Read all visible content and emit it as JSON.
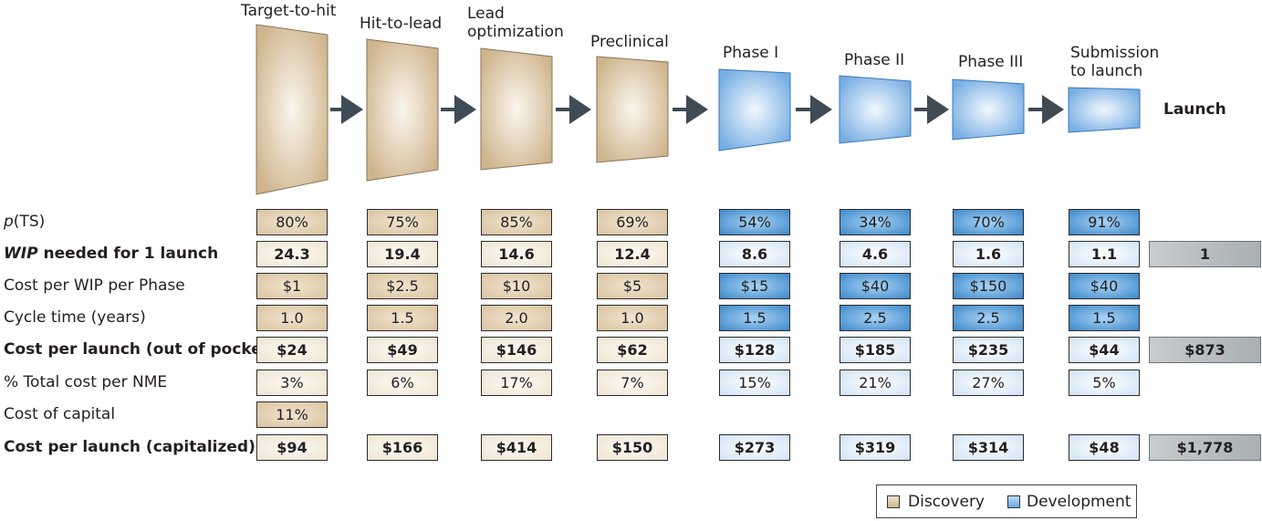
{
  "phases": [
    {
      "label": "Target-to-hit",
      "group": "discovery"
    },
    {
      "label": "Hit-to-lead",
      "group": "discovery"
    },
    {
      "label": "Lead\noptimization",
      "group": "discovery"
    },
    {
      "label": "Preclinical",
      "group": "discovery"
    },
    {
      "label": "Phase I",
      "group": "development"
    },
    {
      "label": "Phase II",
      "group": "development"
    },
    {
      "label": "Phase III",
      "group": "development"
    },
    {
      "label": "Submission\nto launch",
      "group": "development"
    }
  ],
  "launch_label": "Launch",
  "rows": [
    {
      "label_italic": "p",
      "label": "(TS)",
      "bold": false,
      "style": "dark",
      "values": [
        "80%",
        "75%",
        "85%",
        "69%",
        "54%",
        "34%",
        "70%",
        "91%"
      ],
      "launch": null
    },
    {
      "label_italic": "WIP",
      "label": " needed for 1 launch",
      "bold": true,
      "style": "light",
      "values": [
        "24.3",
        "19.4",
        "14.6",
        "12.4",
        "8.6",
        "4.6",
        "1.6",
        "1.1"
      ],
      "launch": "1"
    },
    {
      "label_italic": "",
      "label": "Cost per WIP per Phase",
      "bold": false,
      "style": "dark",
      "values": [
        "$1",
        "$2.5",
        "$10",
        "$5",
        "$15",
        "$40",
        "$150",
        "$40"
      ],
      "launch": null
    },
    {
      "label_italic": "",
      "label": "Cycle time (years)",
      "bold": false,
      "style": "dark",
      "values": [
        "1.0",
        "1.5",
        "2.0",
        "1.0",
        "1.5",
        "2.5",
        "2.5",
        "1.5"
      ],
      "launch": null
    },
    {
      "label_italic": "",
      "label": "Cost per launch (out of pocket)",
      "bold": true,
      "style": "light",
      "values": [
        "$24",
        "$49",
        "$146",
        "$62",
        "$128",
        "$185",
        "$235",
        "$44"
      ],
      "launch": "$873"
    },
    {
      "label_italic": "",
      "label": "% Total cost per NME",
      "bold": false,
      "style": "light",
      "values": [
        "3%",
        "6%",
        "17%",
        "7%",
        "15%",
        "21%",
        "27%",
        "5%"
      ],
      "launch": null
    },
    {
      "label_italic": "",
      "label": "Cost of capital",
      "bold": false,
      "style": "dark",
      "values": [
        "11%"
      ],
      "launch": null
    },
    {
      "label_italic": "",
      "label": "Cost per launch (capitalized)",
      "bold": true,
      "style": "light",
      "values": [
        "$94",
        "$166",
        "$414",
        "$150",
        "$273",
        "$319",
        "$314",
        "$48"
      ],
      "launch": "$1,778"
    }
  ],
  "legend": {
    "discovery": "Discovery",
    "development": "Development"
  },
  "colors": {
    "discovery": "#d8c3a0",
    "development": "#5b9bd5",
    "launch": "#a9b0b3",
    "arrow": "#3f4b55"
  }
}
